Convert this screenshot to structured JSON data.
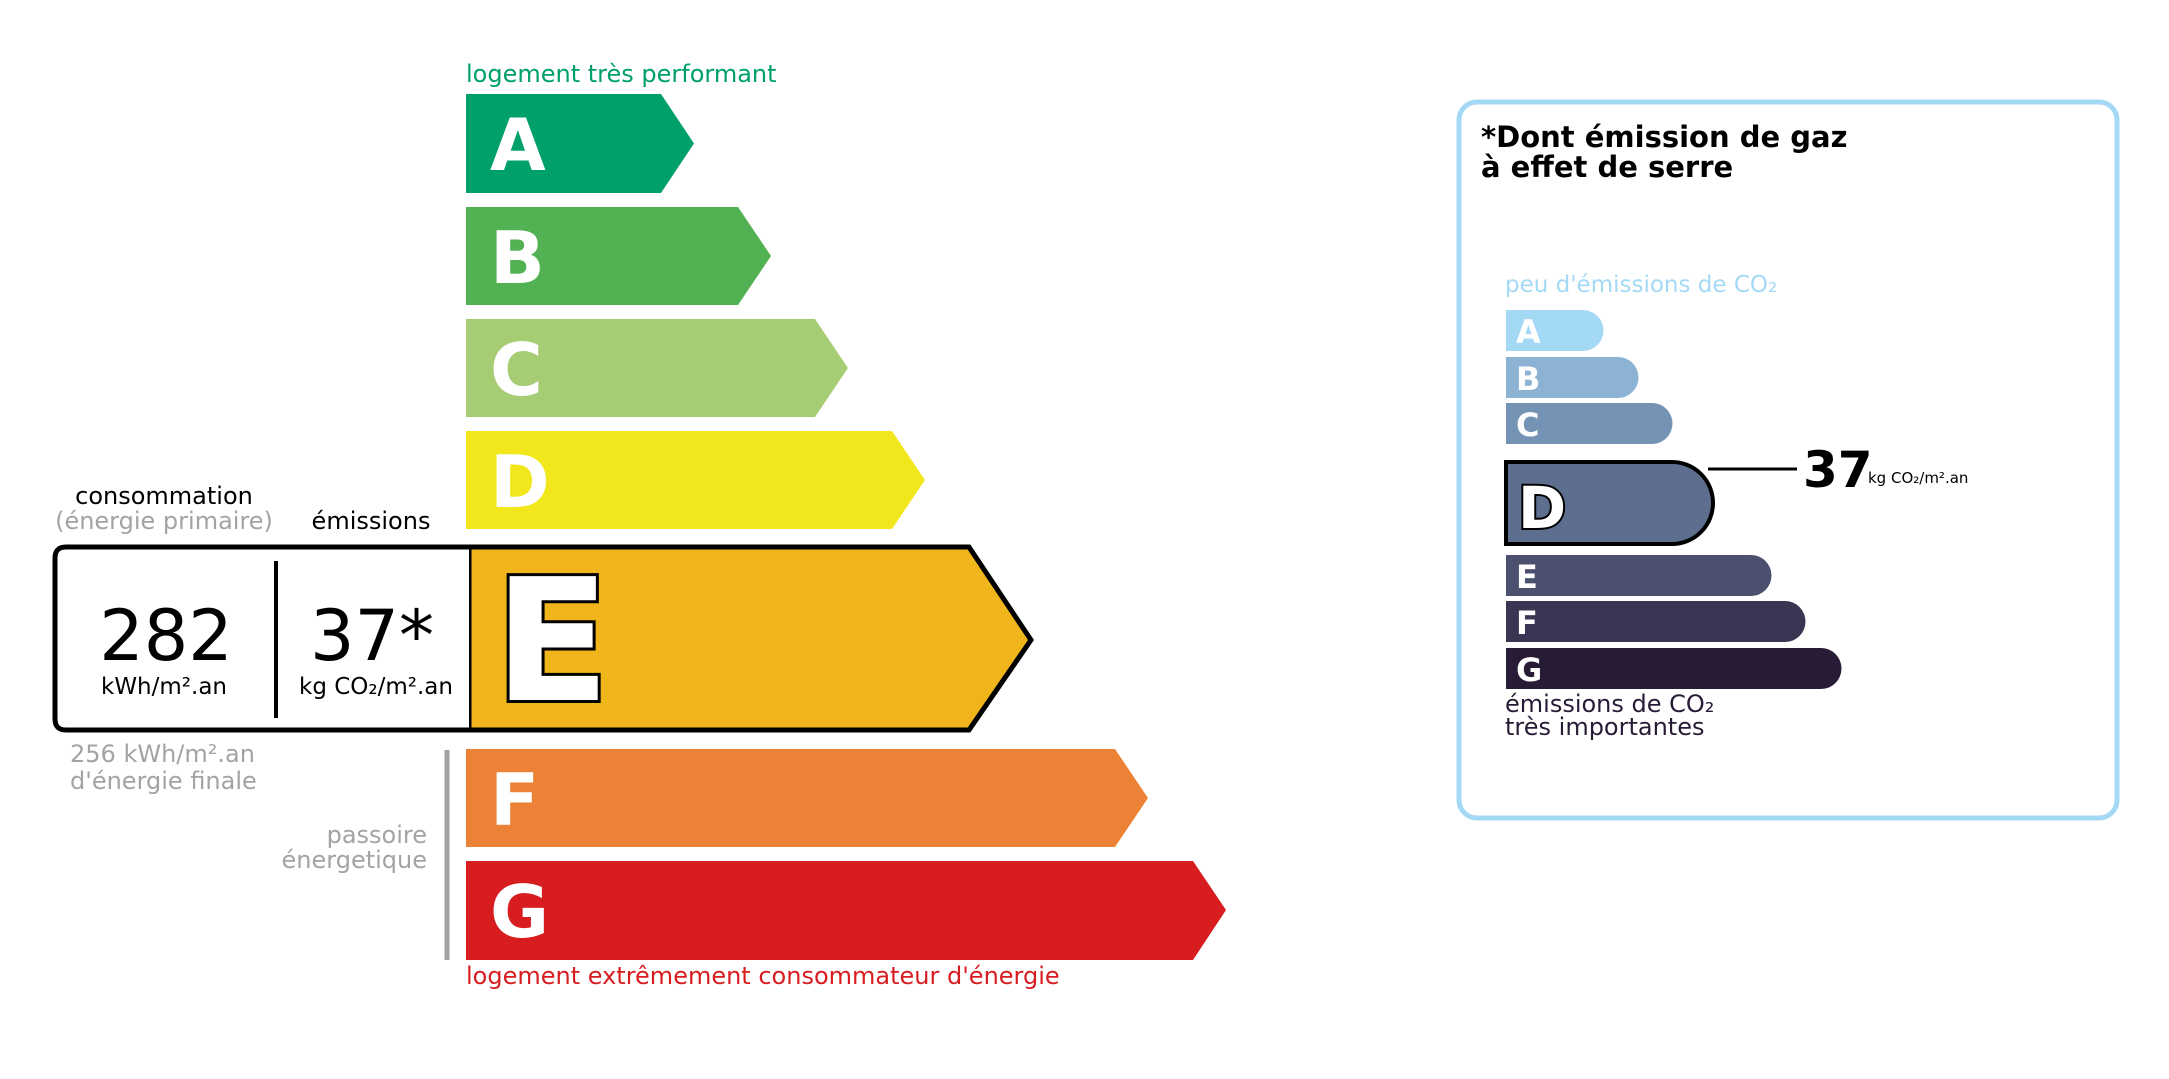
{
  "energy": {
    "top_label": "logement très performant",
    "bottom_label": "logement extrêmement consommateur d'énergie",
    "top_label_color": "#00a06a",
    "bottom_label_color": "#d71d20",
    "current_class": "E",
    "classes": [
      {
        "letter": "A",
        "color": "#00a06a"
      },
      {
        "letter": "B",
        "color": "#51b153"
      },
      {
        "letter": "C",
        "color": "#a6cd74"
      },
      {
        "letter": "D",
        "color": "#f2e61c"
      },
      {
        "letter": "E",
        "color": "#f0b51a"
      },
      {
        "letter": "F",
        "color": "#ec8235"
      },
      {
        "letter": "G",
        "color": "#d71d20"
      }
    ],
    "consumption_label": "consommation",
    "consumption_sub": "(énergie primaire)",
    "emissions_label": "émissions",
    "consumption_value": "282",
    "consumption_unit": "kWh/m².an",
    "emissions_value": "37*",
    "emissions_unit": "kg CO₂/m².an",
    "final_energy_value": "256 kWh/m².an",
    "final_energy_label": "d'énergie finale",
    "passoire_line1": "passoire",
    "passoire_line2": "énergetique"
  },
  "ghg": {
    "title_line1": "*Dont émission de gaz",
    "title_line2": "à effet de serre",
    "top_label": "peu d'émissions de CO₂",
    "bottom_label_line1": "émissions de CO₂",
    "bottom_label_line2": "très importantes",
    "border_color": "#a4d9f6",
    "current_class": "D",
    "value": "37",
    "unit": "kg CO₂/m².an",
    "classes": [
      {
        "letter": "A",
        "color": "#a4d9f6"
      },
      {
        "letter": "B",
        "color": "#8db3d4"
      },
      {
        "letter": "C",
        "color": "#7594b5"
      },
      {
        "letter": "D",
        "color": "#5e6e8f"
      },
      {
        "letter": "E",
        "color": "#4c506f"
      },
      {
        "letter": "F",
        "color": "#393553"
      },
      {
        "letter": "G",
        "color": "#281b35"
      }
    ]
  }
}
